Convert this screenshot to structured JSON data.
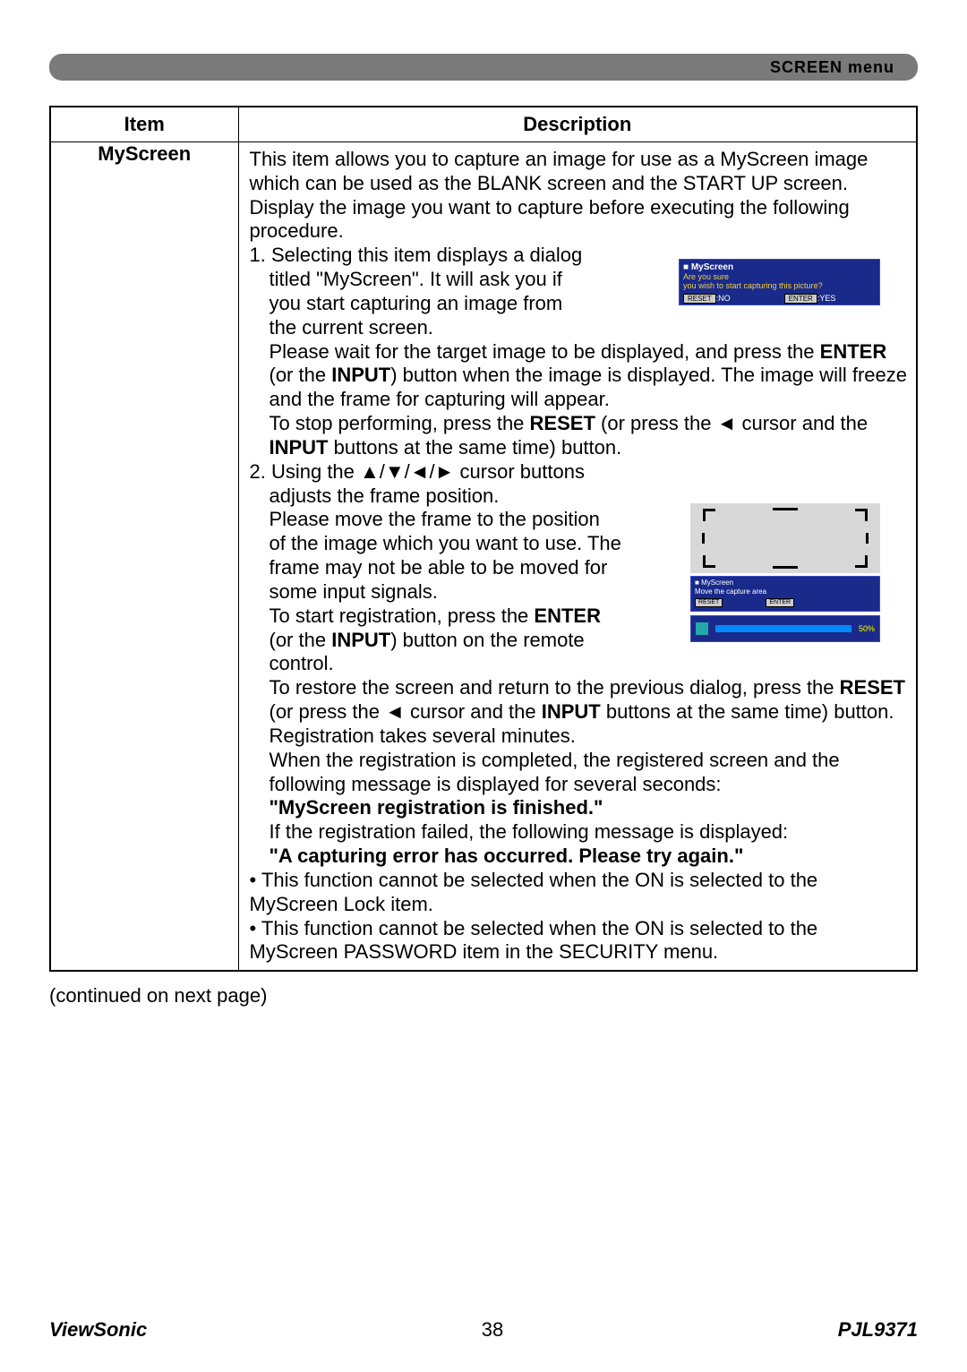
{
  "banner": {
    "label": "SCREEN menu"
  },
  "table": {
    "header_item": "Item",
    "header_desc": "Description",
    "item_name": "MyScreen",
    "desc": {
      "intro": "This item allows you to capture an image for use as a MyScreen image which can be used as the BLANK screen and the START UP screen. Display the image you want to capture before executing the following procedure.",
      "step1_a": "1. Selecting this item displays a dialog",
      "step1_b": "titled \"MyScreen\". It will ask you if",
      "step1_c": "you start capturing an image from",
      "step1_d": "the current screen.",
      "p1a": "Please wait for the target image to be displayed, and press the ",
      "p1b": " (or the ",
      "p1c": ") button when the image is displayed. The image will freeze and the frame for capturing will appear.",
      "p2a": "To stop performing, press the ",
      "p2b": " (or press the ◄ cursor and the ",
      "p2c": " buttons at the same time) button.",
      "step2_a": "2. Using the ▲/▼/◄/► cursor buttons",
      "step2_b": "adjusts the frame position.",
      "step2_c": "Please move the frame to the position",
      "step2_d": "of the image which you want to use. The",
      "step2_e": "frame may not be able to be moved for",
      "step2_f": "some input signals.",
      "p3a": "To start registration, press the ",
      "p3b": "(or the ",
      "p3c": ") button on the remote",
      "p3d": "control.",
      "p4a": "To restore the screen and return to the previous dialog, press the ",
      "p4b": " (or press the ◄ cursor and the ",
      "p4c": " buttons at the same time) button.",
      "p5": "Registration takes several minutes.",
      "p6": "When the registration is completed, the registered screen and the following message is displayed for several seconds:",
      "msg1": "\"MyScreen registration is finished.\"",
      "p7": "If the registration failed, the following message is displayed:",
      "msg2": "\"A capturing error has occurred. Please try again.\"",
      "bullet1": "• This function cannot be selected when the ON is selected to the MyScreen Lock item.",
      "bullet2": "• This function cannot be selected when the ON is selected to the MyScreen PASSWORD item in the SECURITY menu.",
      "kw_enter": "ENTER",
      "kw_input": "INPUT",
      "kw_reset": "RESET"
    }
  },
  "dlg1": {
    "title": "MyScreen",
    "line1": "Are you sure",
    "line2": "you wish to start capturing this picture?",
    "reset": "RESET",
    "no": ":NO",
    "enter": "ENTER",
    "yes": ":YES"
  },
  "dlg2": {
    "title": "MyScreen",
    "line": "Move the capture area",
    "reset": "RESET",
    "enter": "ENTER"
  },
  "dlg3": {
    "pct": "50%"
  },
  "continued": "(continued on next page)",
  "footer": {
    "brand": "ViewSonic",
    "page": "38",
    "model": "PJL9371"
  }
}
